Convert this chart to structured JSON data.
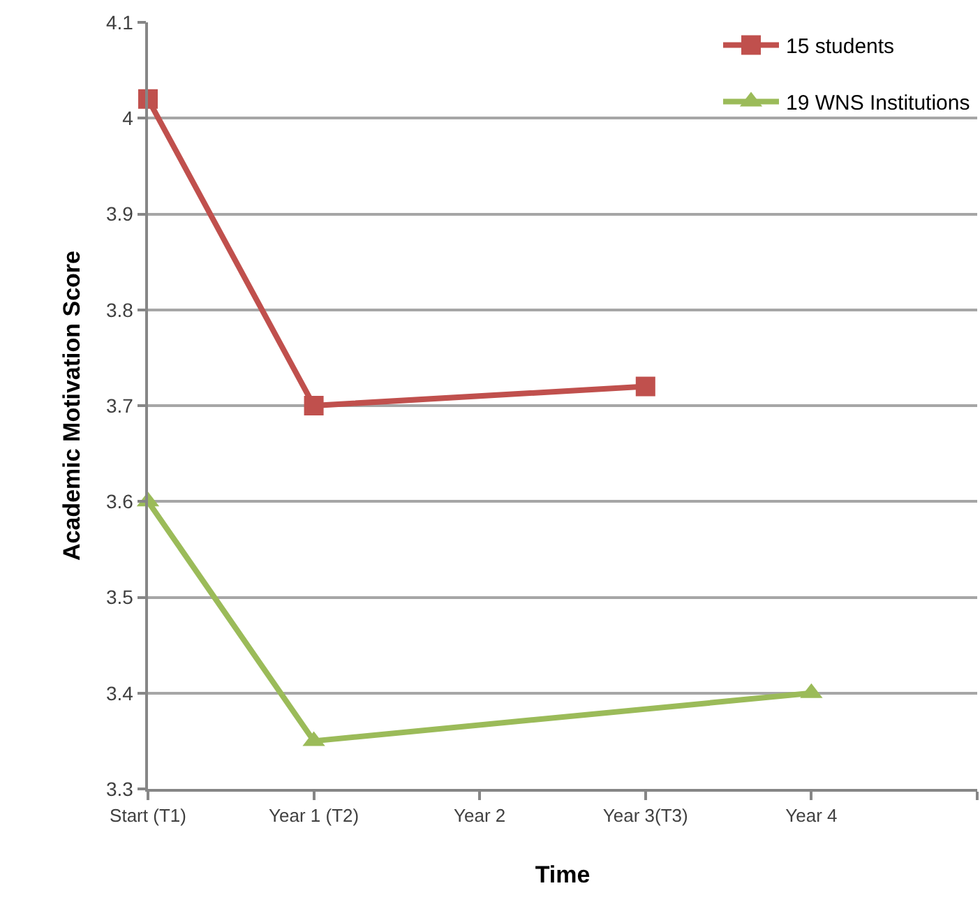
{
  "chart_data": {
    "type": "line",
    "xlabel": "Time",
    "ylabel": "Academic Motivation Score",
    "categories": [
      "Start (T1)",
      "Year 1 (T2)",
      "Year 2",
      "Year 3(T3)",
      "Year 4"
    ],
    "series": [
      {
        "name": "15 students",
        "color": "#c0504d",
        "marker": "square",
        "values": [
          4.02,
          3.7,
          null,
          3.72,
          null
        ]
      },
      {
        "name": "19 WNS Institutions",
        "color": "#9bbb59",
        "marker": "triangle",
        "values": [
          3.6,
          3.35,
          null,
          null,
          3.4
        ]
      }
    ],
    "ylim": [
      3.3,
      4.1
    ],
    "yticks": [
      3.3,
      3.4,
      3.5,
      3.6,
      3.7,
      3.8,
      3.9,
      4,
      4.1
    ],
    "grid": "y",
    "legend": "top right"
  }
}
